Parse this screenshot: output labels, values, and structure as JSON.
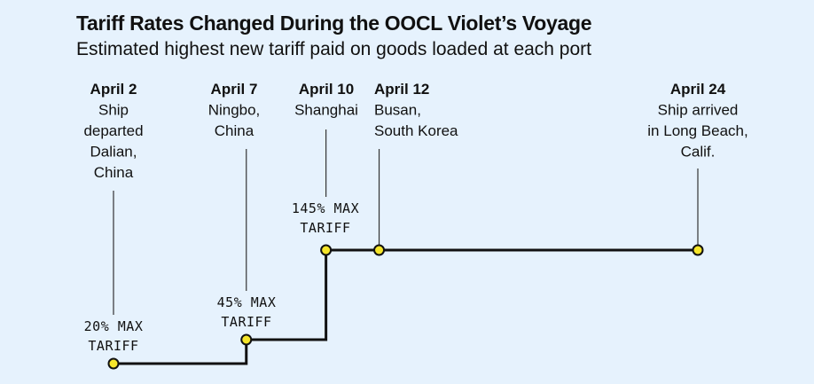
{
  "header": {
    "title": "Tariff Rates Changed During the OOCL Violet’s Voyage",
    "subtitle": "Estimated highest new tariff paid on goods loaded at each port"
  },
  "chart_data": {
    "type": "line",
    "line_style": "step",
    "title": "Tariff Rates Changed During the OOCL Violet’s Voyage",
    "subtitle": "Estimated highest new tariff paid on goods loaded at each port",
    "xlabel": "",
    "ylabel": "",
    "x_unit": "date",
    "y_unit": "percent",
    "grid": false,
    "colors": {
      "line": "#111111",
      "marker_fill": "#f5e52a",
      "marker_stroke": "#111111",
      "background": "#e6f2fd"
    },
    "points": [
      {
        "x": "April 2",
        "y": 20,
        "date_label": "April 2",
        "desc_lines": [
          "Ship",
          "departed",
          "Dalian,",
          "China"
        ],
        "tariff_lines": [
          "20% MAX",
          "TARIFF"
        ]
      },
      {
        "x": "April 7",
        "y": 45,
        "date_label": "April 7",
        "desc_lines": [
          "Ningbo,",
          "China"
        ],
        "tariff_lines": [
          "45% MAX",
          "TARIFF"
        ]
      },
      {
        "x": "April 10",
        "y": 145,
        "date_label": "April 10",
        "desc_lines": [
          "Shanghai"
        ],
        "tariff_lines": [
          "145% MAX",
          "TARIFF"
        ]
      },
      {
        "x": "April 12",
        "y": 145,
        "date_label": "April 12",
        "desc_lines": [
          "Busan,",
          "South Korea"
        ],
        "tariff_lines": []
      },
      {
        "x": "April 24",
        "y": 145,
        "date_label": "April 24",
        "desc_lines": [
          "Ship arrived",
          "in Long Beach,",
          "Calif."
        ],
        "tariff_lines": []
      }
    ]
  }
}
